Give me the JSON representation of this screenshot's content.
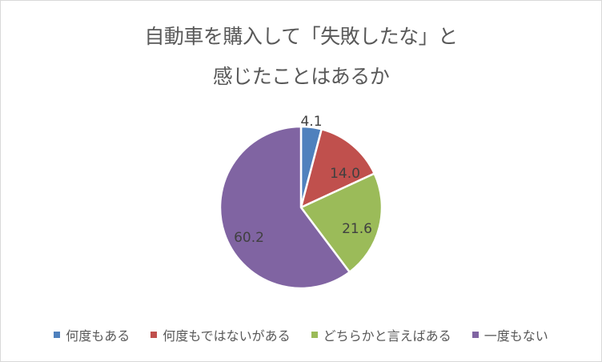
{
  "chart_data": {
    "type": "pie",
    "title_line1": "自動車を購入して「失敗したな」と",
    "title_line2": "感じたことはあるか",
    "categories": [
      "何度もある",
      "何度もではないがある",
      "どちらかと言えばある",
      "一度もない"
    ],
    "values": [
      4.1,
      14.0,
      21.6,
      60.2
    ],
    "labels": [
      "4.1",
      "14.0",
      "21.6",
      "60.2"
    ],
    "colors": [
      "#4f81bd",
      "#c0504d",
      "#9bbb59",
      "#8064a2"
    ],
    "legend_position": "bottom"
  }
}
